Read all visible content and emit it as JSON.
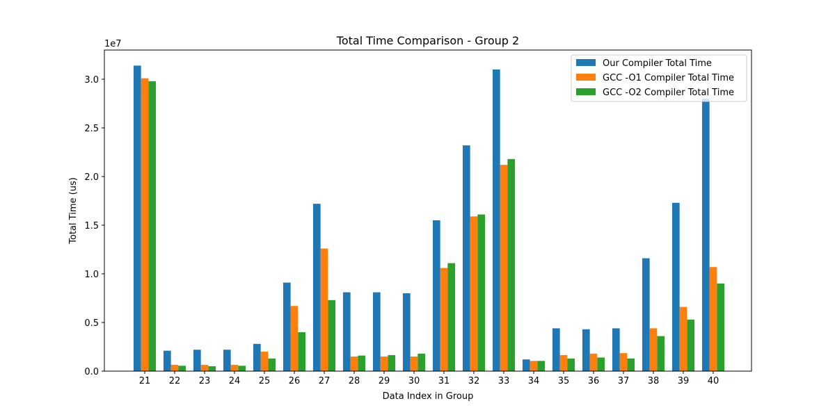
{
  "chart_data": {
    "type": "bar",
    "title": "Total Time Comparison - Group 2",
    "xlabel": "Data Index in Group",
    "ylabel": "Total Time (us)",
    "y_offset_label": "1e7",
    "y_scale": 10000000,
    "ylim": [
      0,
      33000000
    ],
    "y_ticks": [
      0,
      5000000,
      10000000,
      15000000,
      20000000,
      25000000,
      30000000
    ],
    "y_tick_labels": [
      "0.0",
      "0.5",
      "1.0",
      "1.5",
      "2.0",
      "2.5",
      "3.0"
    ],
    "categories": [
      "21",
      "22",
      "23",
      "24",
      "25",
      "26",
      "27",
      "28",
      "29",
      "30",
      "31",
      "32",
      "33",
      "34",
      "35",
      "36",
      "37",
      "38",
      "39",
      "40"
    ],
    "legend_position": "upper right",
    "grid": false,
    "series": [
      {
        "name": "Our Compiler Total Time",
        "color": "#1f77b4",
        "values": [
          31400000,
          2100000,
          2200000,
          2200000,
          2800000,
          9100000,
          17200000,
          8100000,
          8100000,
          8000000,
          15500000,
          23200000,
          31000000,
          1200000,
          4400000,
          4300000,
          4400000,
          11600000,
          17300000,
          28000000
        ]
      },
      {
        "name": "GCC -O1 Compiler Total Time",
        "color": "#ff7f0e",
        "values": [
          30100000,
          650000,
          650000,
          650000,
          2000000,
          6700000,
          12600000,
          1500000,
          1500000,
          1500000,
          10600000,
          15900000,
          21200000,
          1050000,
          1650000,
          1800000,
          1850000,
          4400000,
          6600000,
          10700000
        ]
      },
      {
        "name": "GCC -O2 Compiler Total Time",
        "color": "#2ca02c",
        "values": [
          29800000,
          550000,
          500000,
          550000,
          1300000,
          4000000,
          7300000,
          1600000,
          1650000,
          1800000,
          11100000,
          16100000,
          21800000,
          1050000,
          1300000,
          1400000,
          1300000,
          3600000,
          5300000,
          9000000
        ]
      }
    ]
  }
}
